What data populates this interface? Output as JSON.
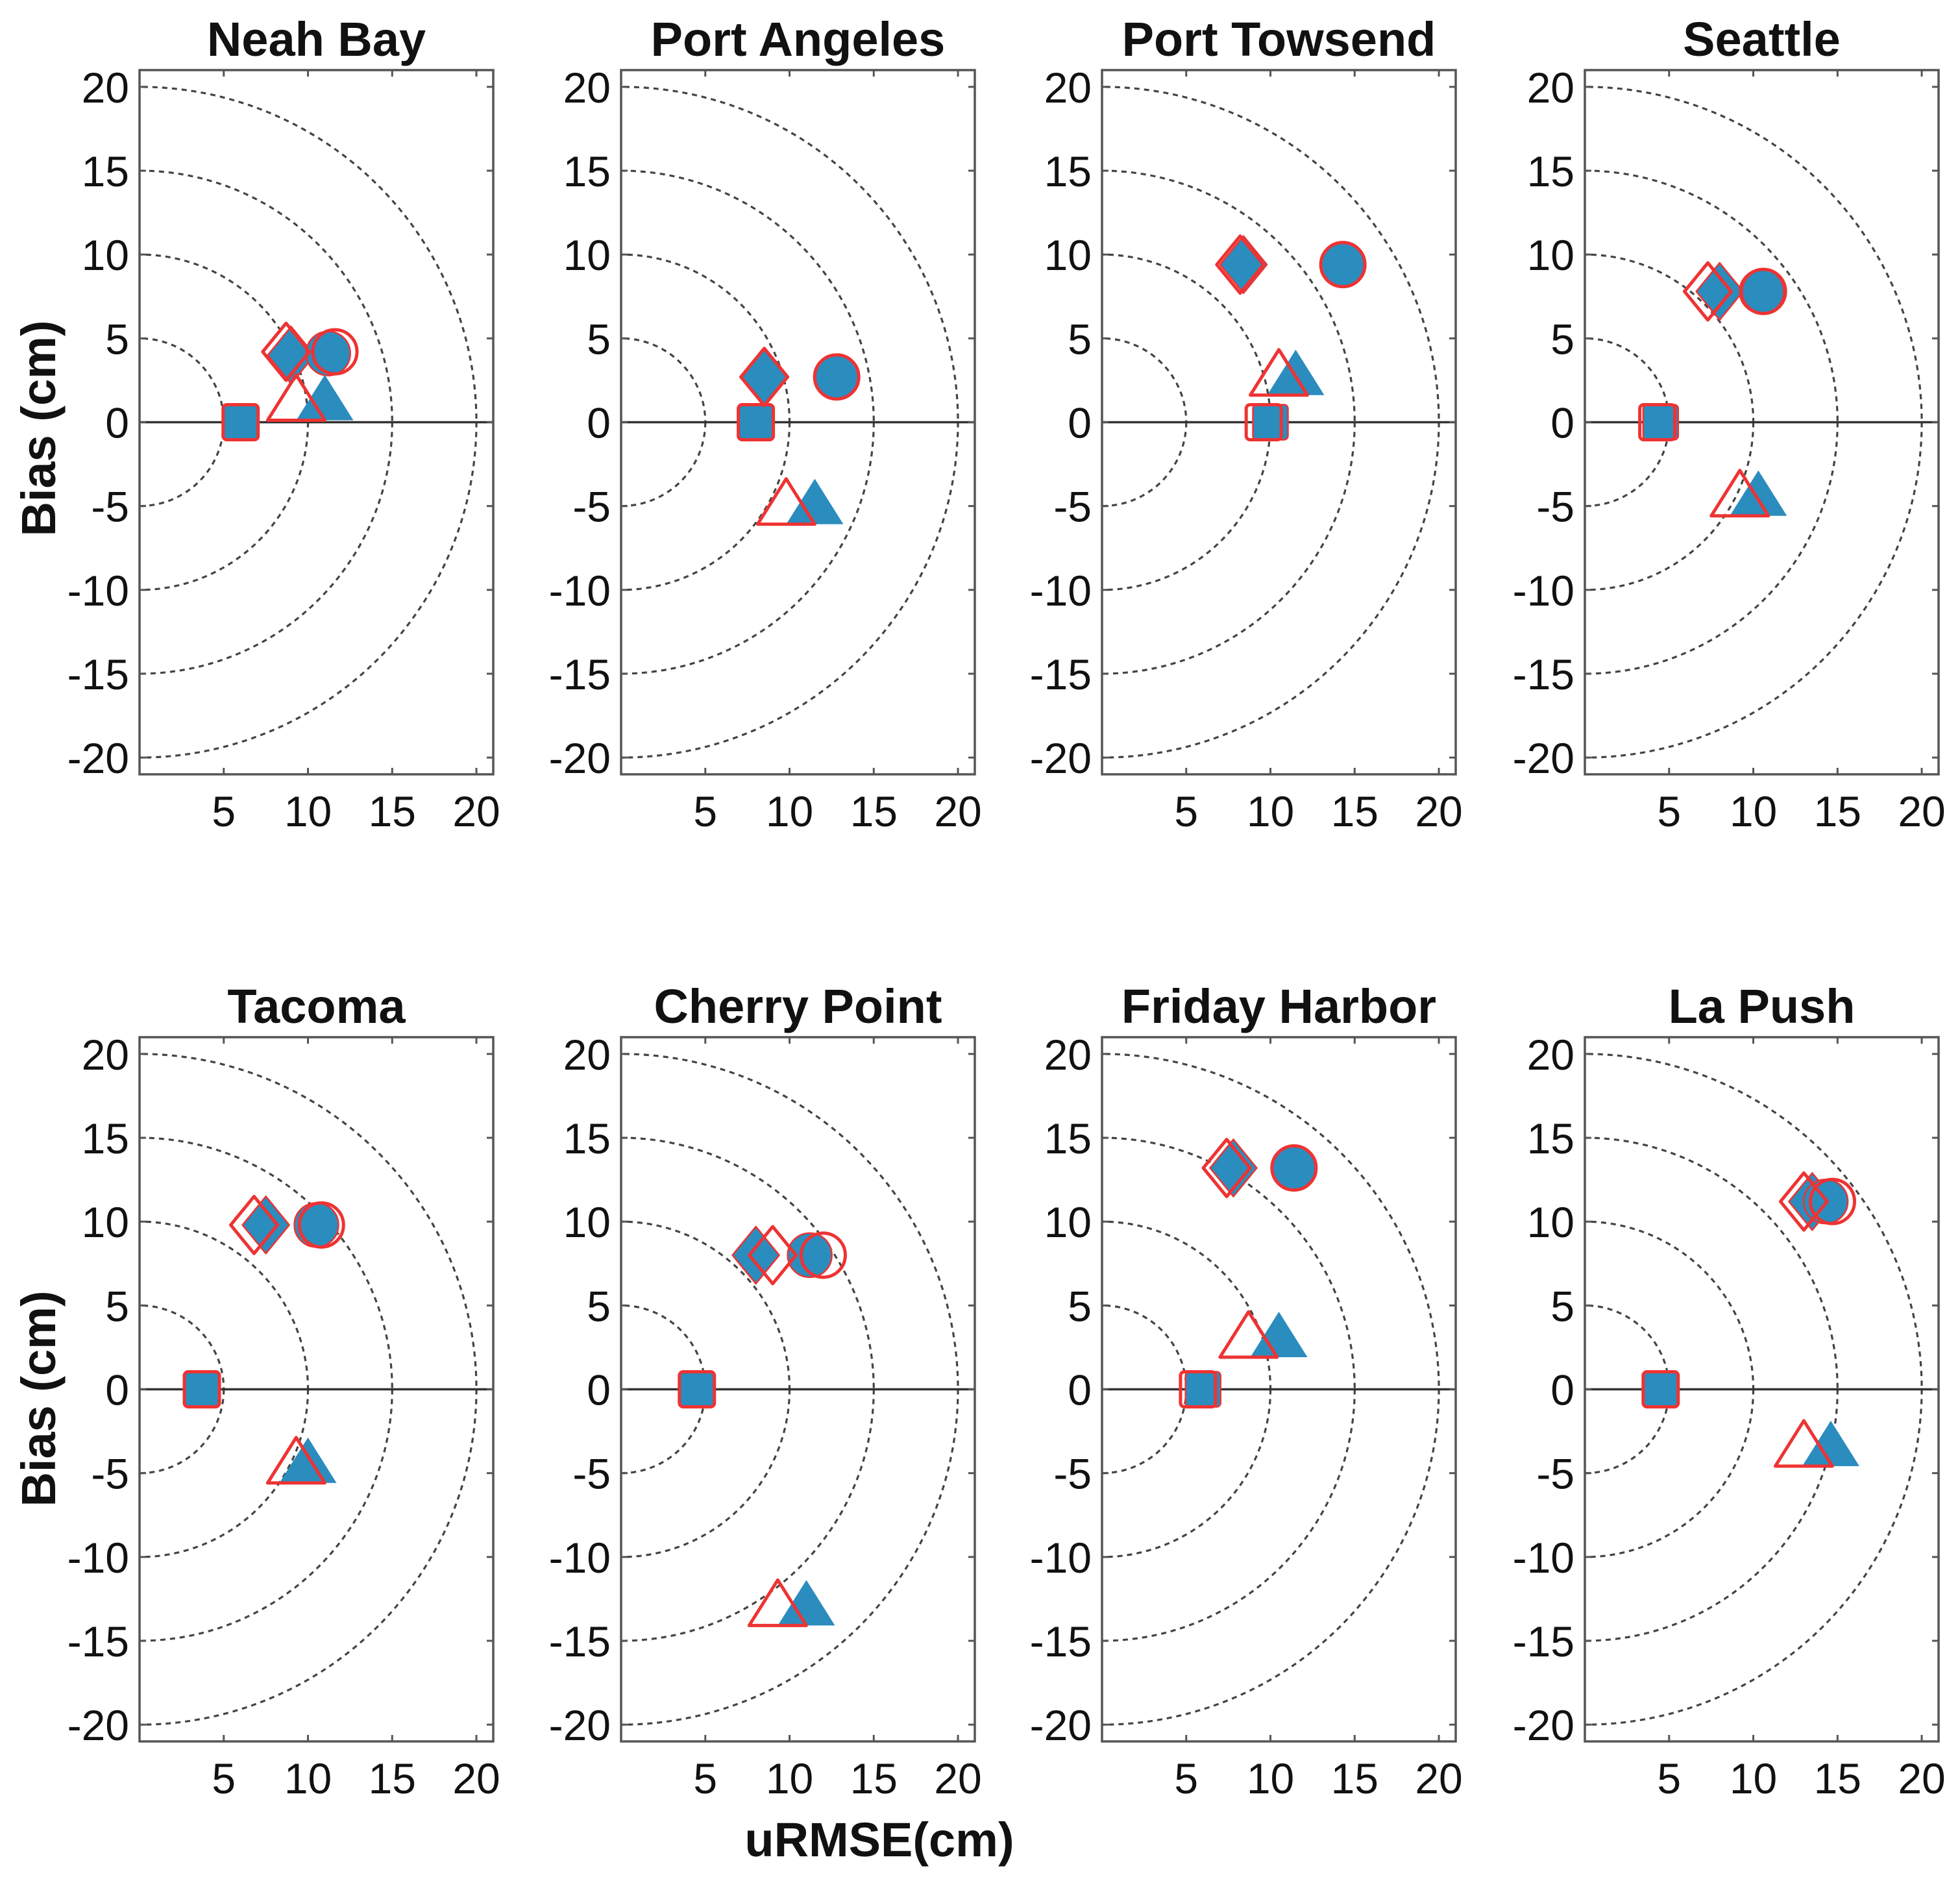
{
  "chart_data": {
    "type": "scatter",
    "description_kind": "target diagram (small multiples)",
    "xlabel": "uRMSE(cm)",
    "ylabel": "Bias (cm)",
    "xlim": [
      0,
      21
    ],
    "ylim": [
      -21,
      21
    ],
    "x_ticks": [
      5,
      10,
      15,
      20
    ],
    "y_ticks": [
      -20,
      -15,
      -10,
      -5,
      0,
      5,
      10,
      15,
      20
    ],
    "circle_radii": [
      5,
      10,
      15,
      20
    ],
    "colors": {
      "filled": "#2b8cbe",
      "open": "#ee3333",
      "edge": "#ee3333",
      "axis": "#333333"
    },
    "series_note": "filled = model result A (blue fill), open = model result B (red outline)",
    "panels": [
      {
        "title": "Neah Bay",
        "markers": [
          {
            "shape": "square",
            "style": "filled",
            "x": 6.0,
            "y": 0.0
          },
          {
            "shape": "square",
            "style": "open",
            "x": 6.0,
            "y": 0.0
          },
          {
            "shape": "diamond",
            "style": "filled",
            "x": 9.0,
            "y": 4.0
          },
          {
            "shape": "diamond",
            "style": "open",
            "x": 8.7,
            "y": 4.2
          },
          {
            "shape": "circle",
            "style": "filled",
            "x": 11.2,
            "y": 4.1
          },
          {
            "shape": "circle",
            "style": "open",
            "x": 11.6,
            "y": 4.2
          },
          {
            "shape": "triangle",
            "style": "filled",
            "x": 11.0,
            "y": 1.2
          },
          {
            "shape": "triangle",
            "style": "open",
            "x": 9.3,
            "y": 1.2
          }
        ]
      },
      {
        "title": "Port Angeles",
        "markers": [
          {
            "shape": "square",
            "style": "filled",
            "x": 8.0,
            "y": 0.0
          },
          {
            "shape": "square",
            "style": "open",
            "x": 8.0,
            "y": 0.0
          },
          {
            "shape": "diamond",
            "style": "filled",
            "x": 8.5,
            "y": 2.7
          },
          {
            "shape": "diamond",
            "style": "open",
            "x": 8.5,
            "y": 2.7
          },
          {
            "shape": "circle",
            "style": "filled",
            "x": 12.8,
            "y": 2.7
          },
          {
            "shape": "circle",
            "style": "open",
            "x": 12.8,
            "y": 2.7
          },
          {
            "shape": "triangle",
            "style": "filled",
            "x": 11.5,
            "y": -5.0
          },
          {
            "shape": "triangle",
            "style": "open",
            "x": 9.8,
            "y": -5.0
          }
        ]
      },
      {
        "title": "Port Towsend",
        "markers": [
          {
            "shape": "square",
            "style": "filled",
            "x": 10.0,
            "y": 0.0
          },
          {
            "shape": "square",
            "style": "open",
            "x": 9.6,
            "y": 0.0
          },
          {
            "shape": "diamond",
            "style": "filled",
            "x": 8.4,
            "y": 9.4
          },
          {
            "shape": "diamond",
            "style": "open",
            "x": 8.2,
            "y": 9.4
          },
          {
            "shape": "circle",
            "style": "filled",
            "x": 14.3,
            "y": 9.4
          },
          {
            "shape": "circle",
            "style": "open",
            "x": 14.3,
            "y": 9.4
          },
          {
            "shape": "triangle",
            "style": "filled",
            "x": 11.5,
            "y": 2.7
          },
          {
            "shape": "triangle",
            "style": "open",
            "x": 10.5,
            "y": 2.7
          }
        ]
      },
      {
        "title": "Seattle",
        "markers": [
          {
            "shape": "square",
            "style": "filled",
            "x": 4.5,
            "y": 0.0
          },
          {
            "shape": "square",
            "style": "open",
            "x": 4.3,
            "y": 0.0
          },
          {
            "shape": "diamond",
            "style": "filled",
            "x": 8.0,
            "y": 7.8
          },
          {
            "shape": "diamond",
            "style": "open",
            "x": 7.3,
            "y": 7.8
          },
          {
            "shape": "circle",
            "style": "filled",
            "x": 10.5,
            "y": 7.8
          },
          {
            "shape": "circle",
            "style": "open",
            "x": 10.6,
            "y": 7.8
          },
          {
            "shape": "triangle",
            "style": "filled",
            "x": 10.3,
            "y": -4.5
          },
          {
            "shape": "triangle",
            "style": "open",
            "x": 9.2,
            "y": -4.5
          }
        ]
      },
      {
        "title": "Tacoma",
        "markers": [
          {
            "shape": "square",
            "style": "filled",
            "x": 3.7,
            "y": 0.0
          },
          {
            "shape": "square",
            "style": "open",
            "x": 3.7,
            "y": 0.0
          },
          {
            "shape": "diamond",
            "style": "filled",
            "x": 7.5,
            "y": 9.8
          },
          {
            "shape": "diamond",
            "style": "open",
            "x": 6.8,
            "y": 9.8
          },
          {
            "shape": "circle",
            "style": "filled",
            "x": 10.5,
            "y": 9.8
          },
          {
            "shape": "circle",
            "style": "open",
            "x": 10.8,
            "y": 9.8
          },
          {
            "shape": "triangle",
            "style": "filled",
            "x": 10.0,
            "y": -4.5
          },
          {
            "shape": "triangle",
            "style": "open",
            "x": 9.3,
            "y": -4.5
          }
        ]
      },
      {
        "title": "Cherry Point",
        "markers": [
          {
            "shape": "square",
            "style": "filled",
            "x": 4.5,
            "y": 0.0
          },
          {
            "shape": "square",
            "style": "open",
            "x": 4.5,
            "y": 0.0
          },
          {
            "shape": "diamond",
            "style": "filled",
            "x": 8.0,
            "y": 8.0
          },
          {
            "shape": "diamond",
            "style": "open",
            "x": 9.0,
            "y": 8.0
          },
          {
            "shape": "circle",
            "style": "filled",
            "x": 11.2,
            "y": 8.0
          },
          {
            "shape": "circle",
            "style": "open",
            "x": 12.0,
            "y": 8.0
          },
          {
            "shape": "triangle",
            "style": "filled",
            "x": 11.0,
            "y": -13.0
          },
          {
            "shape": "triangle",
            "style": "open",
            "x": 9.3,
            "y": -13.0
          }
        ]
      },
      {
        "title": "Friday Harbor",
        "markers": [
          {
            "shape": "square",
            "style": "filled",
            "x": 6.0,
            "y": 0.0
          },
          {
            "shape": "square",
            "style": "open",
            "x": 5.7,
            "y": 0.0
          },
          {
            "shape": "diamond",
            "style": "filled",
            "x": 7.8,
            "y": 13.2
          },
          {
            "shape": "diamond",
            "style": "open",
            "x": 7.4,
            "y": 13.2
          },
          {
            "shape": "circle",
            "style": "filled",
            "x": 11.4,
            "y": 13.2
          },
          {
            "shape": "circle",
            "style": "open",
            "x": 11.4,
            "y": 13.2
          },
          {
            "shape": "triangle",
            "style": "filled",
            "x": 10.5,
            "y": 3.0
          },
          {
            "shape": "triangle",
            "style": "open",
            "x": 8.7,
            "y": 3.0
          }
        ]
      },
      {
        "title": "La Push",
        "markers": [
          {
            "shape": "square",
            "style": "filled",
            "x": 4.5,
            "y": 0.0
          },
          {
            "shape": "square",
            "style": "open",
            "x": 4.5,
            "y": 0.0
          },
          {
            "shape": "diamond",
            "style": "filled",
            "x": 13.5,
            "y": 11.2
          },
          {
            "shape": "diamond",
            "style": "open",
            "x": 13.0,
            "y": 11.2
          },
          {
            "shape": "circle",
            "style": "filled",
            "x": 14.3,
            "y": 11.2
          },
          {
            "shape": "circle",
            "style": "open",
            "x": 14.7,
            "y": 11.2
          },
          {
            "shape": "triangle",
            "style": "filled",
            "x": 14.6,
            "y": -3.5
          },
          {
            "shape": "triangle",
            "style": "open",
            "x": 13.0,
            "y": -3.5
          }
        ]
      }
    ]
  }
}
